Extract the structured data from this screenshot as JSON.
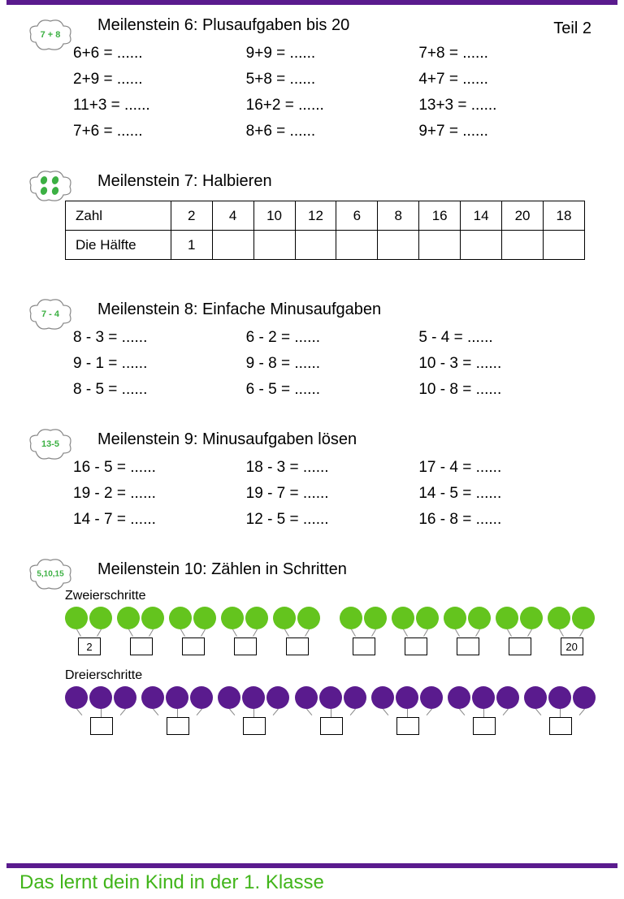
{
  "page": {
    "part_label": "Teil 2",
    "footer": "Das lernt dein Kind in der 1. Klasse",
    "accent_color": "#5a1b8e",
    "footer_color": "#41b51a"
  },
  "m6": {
    "cloud_text": "7 + 8",
    "title": "Meilenstein 6: Plusaufgaben bis 20",
    "rows": [
      [
        "6+6 = ......",
        "9+9 = ......",
        "7+8 = ......"
      ],
      [
        "2+9 = ......",
        "5+8 = ......",
        "4+7 = ......"
      ],
      [
        "11+3 = ......",
        "16+2 = ......",
        "13+3 = ......"
      ],
      [
        "7+6 = ......",
        "8+6 = ......",
        "9+7 = ......"
      ]
    ]
  },
  "m7": {
    "title": "Meilenstein 7: Halbieren",
    "row1_label": "Zahl",
    "row2_label": "Die Hälfte",
    "numbers": [
      "2",
      "4",
      "10",
      "12",
      "6",
      "8",
      "16",
      "14",
      "20",
      "18"
    ],
    "halves": [
      "1",
      "",
      "",
      "",
      "",
      "",
      "",
      "",
      "",
      ""
    ]
  },
  "m8": {
    "cloud_text": "7 - 4",
    "title": "Meilenstein 8: Einfache Minusaufgaben",
    "rows": [
      [
        "8 - 3 = ......",
        "6 - 2 = ......",
        "5 - 4 = ......"
      ],
      [
        "9 - 1 = ......",
        "9 - 8 = ......",
        "10 - 3 = ......"
      ],
      [
        "8 - 5 = ......",
        "6 - 5 = ......",
        "10 - 8 = ......"
      ]
    ]
  },
  "m9": {
    "cloud_text": "13-5",
    "title": "Meilenstein 9: Minusaufgaben lösen",
    "rows": [
      [
        "16 - 5 = ......",
        "18 - 3 = ......",
        "17 - 4 = ......"
      ],
      [
        "19 - 2 = ......",
        "19 - 7 = ......",
        "14 - 5 = ......"
      ],
      [
        "14 - 7 = ......",
        "12 - 5 = ......",
        "16 - 8 = ......"
      ]
    ]
  },
  "m10": {
    "cloud_text": "5,10,15",
    "title": "Meilenstein 10: Zählen in Schritten",
    "twos_label": "Zweierschritte",
    "threes_label": "Dreierschritte",
    "twos_first": "2",
    "twos_last": "20",
    "green_color": "#64c41e",
    "purple_color": "#5a1b8e"
  }
}
